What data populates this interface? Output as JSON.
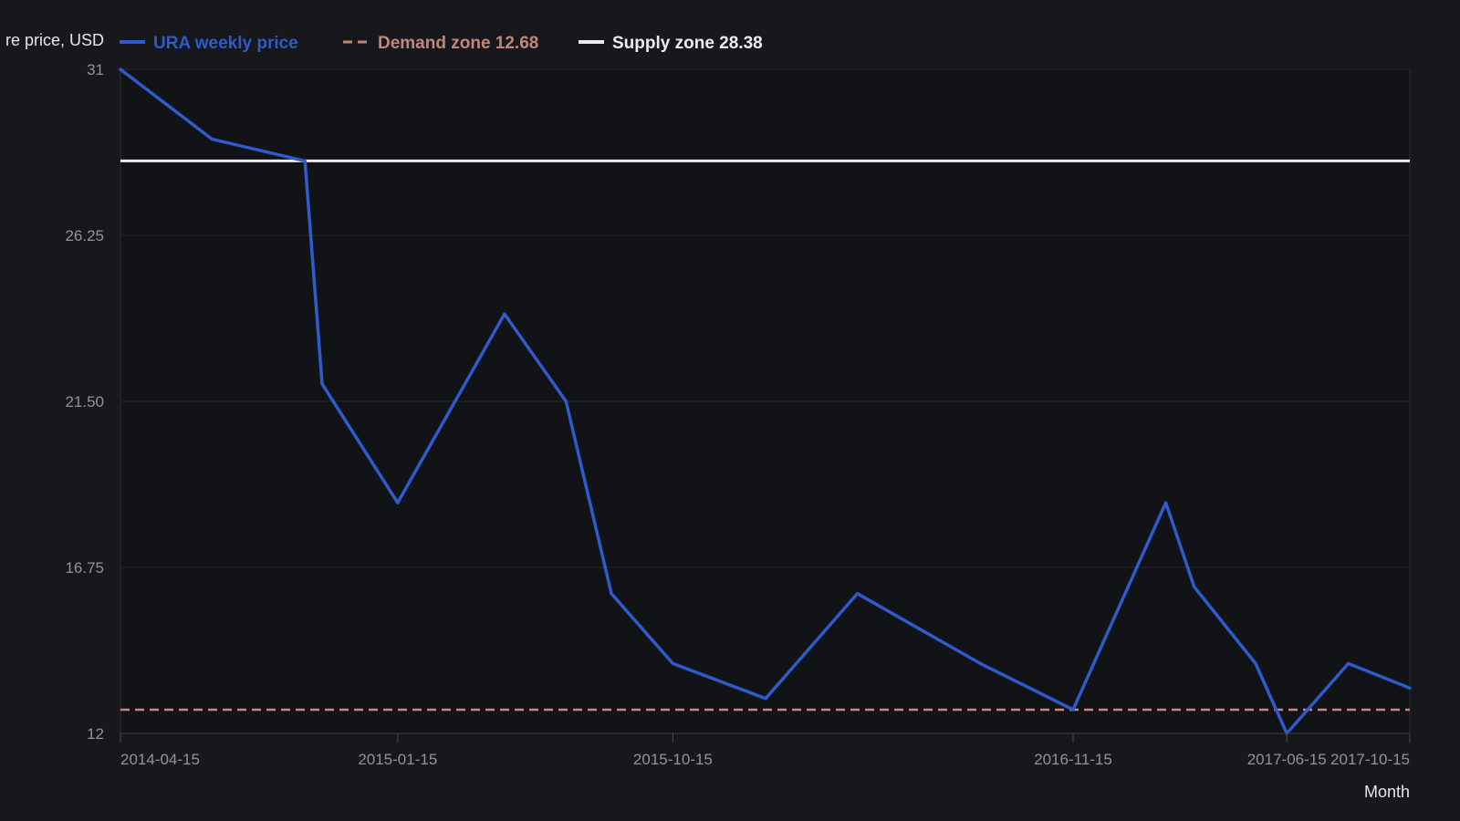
{
  "chart_data": {
    "type": "line",
    "ylabel": "re price, USD",
    "xlabel": "Month",
    "ylim": [
      12,
      31
    ],
    "yticks": [
      "12",
      "16.75",
      "21.50",
      "26.25",
      "31"
    ],
    "xlim": [
      "2014-04-15",
      "2017-10-15"
    ],
    "xticks": [
      "2014-04-15",
      "2015-01-15",
      "2015-10-15",
      "2016-11-15",
      "2017-06-15",
      "2017-10-15"
    ],
    "grid": true,
    "legend": "top-left",
    "series": [
      {
        "name": "URA weekly price",
        "color": "#2e5bcc",
        "style": "solid",
        "points": [
          {
            "x": "2014-04-15",
            "y": 31.0
          },
          {
            "x": "2014-07-15",
            "y": 29.0
          },
          {
            "x": "2014-10-15",
            "y": 28.38
          },
          {
            "x": "2014-11-01",
            "y": 22.0
          },
          {
            "x": "2015-01-15",
            "y": 18.6
          },
          {
            "x": "2015-05-01",
            "y": 24.0
          },
          {
            "x": "2015-07-01",
            "y": 21.5
          },
          {
            "x": "2015-08-15",
            "y": 16.0
          },
          {
            "x": "2015-10-15",
            "y": 14.0
          },
          {
            "x": "2016-01-15",
            "y": 13.0
          },
          {
            "x": "2016-04-15",
            "y": 16.0
          },
          {
            "x": "2016-08-15",
            "y": 14.0
          },
          {
            "x": "2016-11-15",
            "y": 12.68
          },
          {
            "x": "2017-02-15",
            "y": 18.6
          },
          {
            "x": "2017-03-15",
            "y": 16.2
          },
          {
            "x": "2017-05-15",
            "y": 14.0
          },
          {
            "x": "2017-06-15",
            "y": 12.0
          },
          {
            "x": "2017-08-15",
            "y": 14.0
          },
          {
            "x": "2017-10-15",
            "y": 13.3
          }
        ]
      },
      {
        "name": "Demand zone 12.68",
        "color": "#c4867a",
        "style": "dashed",
        "level": 12.68
      },
      {
        "name": "Supply zone 28.38",
        "color": "#ececec",
        "style": "solid",
        "level": 28.38
      }
    ]
  }
}
